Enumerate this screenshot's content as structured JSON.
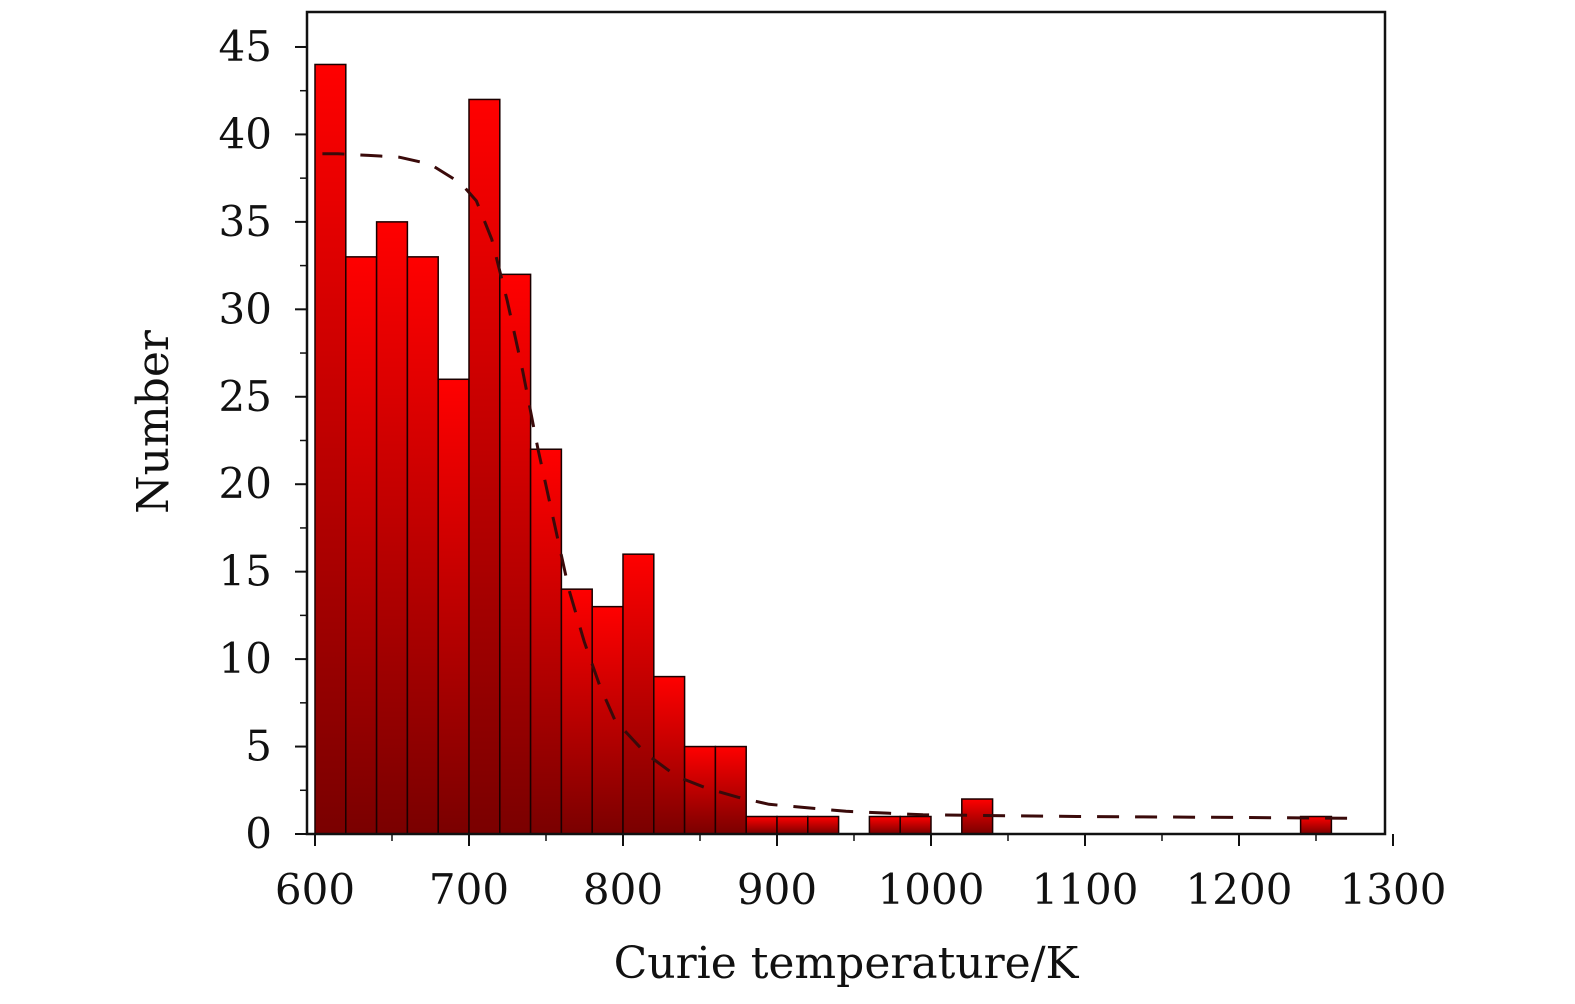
{
  "chart_data": {
    "type": "bar",
    "title": "",
    "xlabel": "Curie temperature/K",
    "ylabel": "Number",
    "xlim": [
      600,
      1300
    ],
    "ylim": [
      0,
      47
    ],
    "xticks": [
      600,
      700,
      800,
      900,
      1000,
      1100,
      1200,
      1300
    ],
    "yticks": [
      0,
      5,
      10,
      15,
      20,
      25,
      30,
      35,
      40,
      45
    ],
    "xtick_labels": [
      "600",
      "700",
      "800",
      "900",
      "1000",
      "1100",
      "1200",
      "1300"
    ],
    "ytick_labels": [
      "0",
      "5",
      "10",
      "15",
      "20",
      "25",
      "30",
      "35",
      "40",
      "45"
    ],
    "bin_width": 20,
    "bins": [
      {
        "start": 600,
        "end": 620,
        "count": 44
      },
      {
        "start": 620,
        "end": 640,
        "count": 33
      },
      {
        "start": 640,
        "end": 660,
        "count": 35
      },
      {
        "start": 660,
        "end": 680,
        "count": 33
      },
      {
        "start": 680,
        "end": 700,
        "count": 26
      },
      {
        "start": 700,
        "end": 720,
        "count": 42
      },
      {
        "start": 720,
        "end": 740,
        "count": 32
      },
      {
        "start": 740,
        "end": 760,
        "count": 22
      },
      {
        "start": 760,
        "end": 780,
        "count": 14
      },
      {
        "start": 780,
        "end": 800,
        "count": 13
      },
      {
        "start": 800,
        "end": 820,
        "count": 16
      },
      {
        "start": 820,
        "end": 840,
        "count": 9
      },
      {
        "start": 840,
        "end": 860,
        "count": 5
      },
      {
        "start": 860,
        "end": 880,
        "count": 5
      },
      {
        "start": 880,
        "end": 900,
        "count": 1
      },
      {
        "start": 900,
        "end": 920,
        "count": 1
      },
      {
        "start": 920,
        "end": 940,
        "count": 1
      },
      {
        "start": 960,
        "end": 980,
        "count": 1
      },
      {
        "start": 980,
        "end": 1000,
        "count": 1
      },
      {
        "start": 1020,
        "end": 1040,
        "count": 2
      },
      {
        "start": 1240,
        "end": 1260,
        "count": 1
      }
    ],
    "fit_curve": {
      "style": "dashed",
      "color": "#3a0a0a",
      "points": [
        [
          610,
          38.9
        ],
        [
          620,
          38.9
        ],
        [
          640,
          38.8
        ],
        [
          660,
          38.7
        ],
        [
          680,
          38.3
        ],
        [
          700,
          37.2
        ],
        [
          710,
          36.2
        ],
        [
          720,
          34.0
        ],
        [
          730,
          30.5
        ],
        [
          740,
          26.5
        ],
        [
          750,
          22.0
        ],
        [
          760,
          18.0
        ],
        [
          770,
          14.0
        ],
        [
          780,
          11.0
        ],
        [
          790,
          8.5
        ],
        [
          800,
          6.5
        ],
        [
          820,
          4.6
        ],
        [
          840,
          3.3
        ],
        [
          860,
          2.6
        ],
        [
          880,
          2.1
        ],
        [
          900,
          1.7
        ],
        [
          950,
          1.3
        ],
        [
          1000,
          1.1
        ],
        [
          1100,
          1.0
        ],
        [
          1200,
          0.95
        ],
        [
          1280,
          0.9
        ]
      ]
    },
    "colors": {
      "bar_top": "#ff0000",
      "bar_bottom": "#7a0000",
      "bar_edge": "#1a0000",
      "axis": "#111111"
    },
    "grid": false,
    "legend": "none"
  }
}
